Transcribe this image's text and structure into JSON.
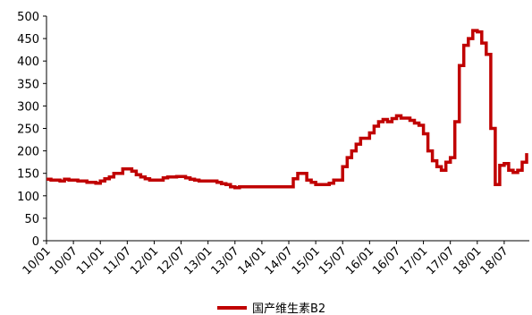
{
  "chart_data": {
    "type": "line",
    "title": "",
    "xlabel": "",
    "ylabel": "",
    "ylim": [
      0,
      500
    ],
    "yticks": [
      0,
      50,
      100,
      150,
      200,
      250,
      300,
      350,
      400,
      450,
      500
    ],
    "xtick_labels": [
      "10/01",
      "10/07",
      "11/01",
      "11/07",
      "12/01",
      "12/07",
      "13/01",
      "13/07",
      "14/01",
      "14/07",
      "15/01",
      "15/07",
      "16/01",
      "16/07",
      "17/01",
      "17/07",
      "18/01",
      "18/07"
    ],
    "x_start": "2010-01",
    "x_end": "2018-12",
    "grid": false,
    "legend_position": "bottom-center",
    "series": [
      {
        "name": "国产维生素B2",
        "color": "#c00000",
        "points": [
          [
            "2010-01",
            137
          ],
          [
            "2010-02",
            135
          ],
          [
            "2010-04",
            133
          ],
          [
            "2010-05",
            137
          ],
          [
            "2010-06",
            135
          ],
          [
            "2010-08",
            133
          ],
          [
            "2010-10",
            130
          ],
          [
            "2010-12",
            128
          ],
          [
            "2011-01",
            133
          ],
          [
            "2011-02",
            138
          ],
          [
            "2011-03",
            142
          ],
          [
            "2011-04",
            150
          ],
          [
            "2011-06",
            160
          ],
          [
            "2011-08",
            155
          ],
          [
            "2011-09",
            147
          ],
          [
            "2011-10",
            142
          ],
          [
            "2011-11",
            138
          ],
          [
            "2011-12",
            135
          ],
          [
            "2012-03",
            140
          ],
          [
            "2012-04",
            142
          ],
          [
            "2012-06",
            143
          ],
          [
            "2012-08",
            140
          ],
          [
            "2012-09",
            137
          ],
          [
            "2012-10",
            135
          ],
          [
            "2012-11",
            133
          ],
          [
            "2013-02",
            133
          ],
          [
            "2013-03",
            130
          ],
          [
            "2013-04",
            127
          ],
          [
            "2013-05",
            125
          ],
          [
            "2013-06",
            120
          ],
          [
            "2013-07",
            118
          ],
          [
            "2013-08",
            120
          ],
          [
            "2014-08",
            138
          ],
          [
            "2014-09",
            150
          ],
          [
            "2014-11",
            135
          ],
          [
            "2014-12",
            130
          ],
          [
            "2015-01",
            125
          ],
          [
            "2015-04",
            128
          ],
          [
            "2015-05",
            135
          ],
          [
            "2015-07",
            165
          ],
          [
            "2015-08",
            185
          ],
          [
            "2015-09",
            200
          ],
          [
            "2015-10",
            215
          ],
          [
            "2015-11",
            228
          ],
          [
            "2016-01",
            240
          ],
          [
            "2016-02",
            255
          ],
          [
            "2016-03",
            265
          ],
          [
            "2016-04",
            270
          ],
          [
            "2016-05",
            265
          ],
          [
            "2016-06",
            272
          ],
          [
            "2016-07",
            278
          ],
          [
            "2016-08",
            273
          ],
          [
            "2016-10",
            268
          ],
          [
            "2016-11",
            262
          ],
          [
            "2016-12",
            257
          ],
          [
            "2017-01",
            238
          ],
          [
            "2017-02",
            200
          ],
          [
            "2017-03",
            178
          ],
          [
            "2017-04",
            165
          ],
          [
            "2017-05",
            157
          ],
          [
            "2017-06",
            175
          ],
          [
            "2017-07",
            185
          ],
          [
            "2017-08",
            265
          ],
          [
            "2017-09",
            390
          ],
          [
            "2017-10",
            435
          ],
          [
            "2017-11",
            450
          ],
          [
            "2017-12",
            468
          ],
          [
            "2018-01",
            465
          ],
          [
            "2018-02",
            440
          ],
          [
            "2018-03",
            415
          ],
          [
            "2018-04",
            250
          ],
          [
            "2018-05",
            125
          ],
          [
            "2018-06",
            168
          ],
          [
            "2018-07",
            172
          ],
          [
            "2018-08",
            157
          ],
          [
            "2018-09",
            152
          ],
          [
            "2018-10",
            157
          ],
          [
            "2018-11",
            175
          ],
          [
            "2018-12",
            195
          ]
        ]
      }
    ]
  }
}
